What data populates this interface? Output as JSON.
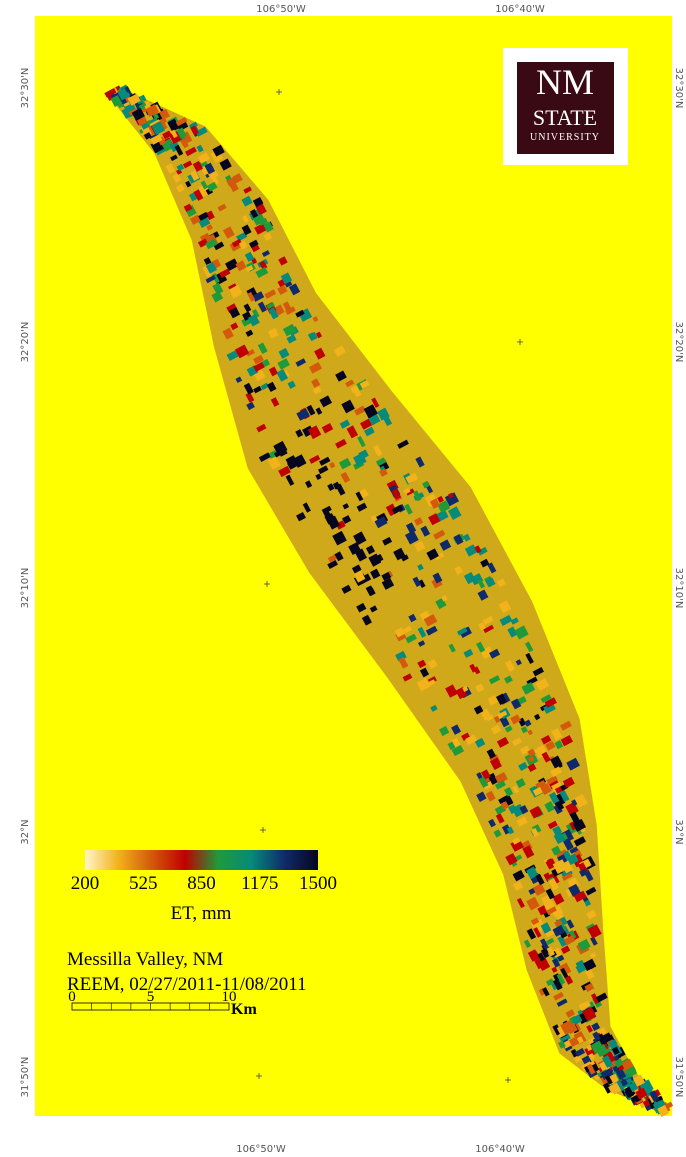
{
  "map": {
    "longitudes": [
      "106°50'W",
      "106°40'W"
    ],
    "latitudes": [
      "32°30'N",
      "32°20'N",
      "32°10'N",
      "32°N",
      "31°50'N"
    ],
    "logo": {
      "line1": "NM",
      "line2": "STATE",
      "line3": "UNIVERSITY"
    },
    "legend": {
      "ticks": [
        200,
        525,
        850,
        1175,
        1500
      ],
      "label": "ET, mm",
      "colors": [
        "#fff6c8",
        "#f2b21a",
        "#d35a0a",
        "#c00000",
        "#1f9a3a",
        "#068a7a",
        "#0f2a6a",
        "#06061e"
      ]
    },
    "title": "Messilla Valley, NM",
    "subtitle": "REEM, 02/27/2011-11/08/2011",
    "scale_bar": {
      "ticks": [
        0,
        5,
        10
      ],
      "unit": "Km"
    }
  }
}
